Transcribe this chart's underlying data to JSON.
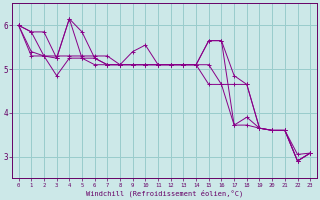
{
  "xlabel": "Windchill (Refroidissement éolien,°C)",
  "bg_color": "#cce8e8",
  "grid_color": "#99cccc",
  "line_color": "#880088",
  "xlim": [
    -0.5,
    23.5
  ],
  "ylim": [
    2.5,
    6.5
  ],
  "yticks": [
    3,
    4,
    5,
    6
  ],
  "xticks": [
    0,
    1,
    2,
    3,
    4,
    5,
    6,
    7,
    8,
    9,
    10,
    11,
    12,
    13,
    14,
    15,
    16,
    17,
    18,
    19,
    20,
    21,
    22,
    23
  ],
  "series": [
    [
      6.0,
      5.3,
      5.3,
      5.3,
      5.3,
      5.3,
      5.3,
      5.3,
      5.1,
      5.1,
      5.1,
      5.1,
      5.1,
      5.1,
      5.1,
      5.1,
      4.65,
      4.65,
      4.65,
      3.65,
      3.6,
      3.6,
      3.05,
      3.08
    ],
    [
      6.0,
      5.85,
      5.85,
      5.25,
      6.15,
      5.85,
      5.25,
      5.1,
      5.1,
      5.4,
      5.55,
      5.1,
      5.1,
      5.1,
      5.1,
      5.65,
      5.65,
      4.85,
      4.65,
      3.65,
      3.6,
      3.6,
      2.9,
      3.08
    ],
    [
      6.0,
      5.85,
      5.3,
      5.25,
      6.15,
      5.25,
      5.25,
      5.1,
      5.1,
      5.1,
      5.1,
      5.1,
      5.1,
      5.1,
      5.1,
      5.65,
      5.65,
      3.72,
      3.9,
      3.65,
      3.6,
      3.6,
      2.9,
      3.08
    ],
    [
      6.0,
      5.4,
      5.3,
      4.85,
      5.25,
      5.25,
      5.1,
      5.1,
      5.1,
      5.1,
      5.1,
      5.1,
      5.1,
      5.1,
      5.1,
      4.65,
      4.65,
      3.72,
      3.72,
      3.65,
      3.6,
      3.6,
      2.9,
      3.08
    ]
  ]
}
